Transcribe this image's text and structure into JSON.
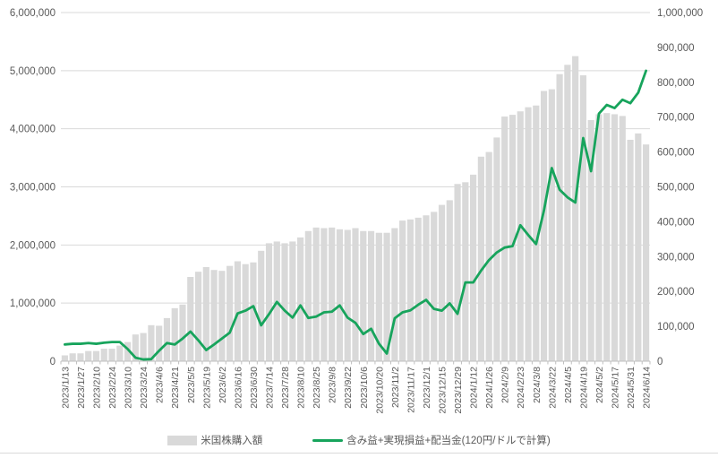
{
  "chart_data": {
    "type": "bar",
    "subtype": "combo-bar-line-dual-axis",
    "title": "",
    "xlabel": "",
    "ylabel_left": "",
    "ylabel_right": "",
    "grid": "horizontal",
    "legend_position": "bottom",
    "point_count": 75,
    "x_tick_labels": [
      "2023/1/13",
      "2023/1/27",
      "2023/2/10",
      "2023/2/24",
      "2023/3/10",
      "2023/3/24",
      "2023/4/6",
      "2023/4/21",
      "2023/5/5",
      "2023/5/19",
      "2023/6/2",
      "2023/6/16",
      "2023/6/30",
      "2023/7/14",
      "2023/7/28",
      "2023/8/10",
      "2023/8/25",
      "2023/9/8",
      "2023/9/22",
      "2023/10/6",
      "2023/10/20",
      "2023/11/2",
      "2023/11/17",
      "2023/12/1",
      "2023/12/15",
      "2023/12/29",
      "2024/1/12",
      "2024/1/26",
      "2024/2/9",
      "2024/2/23",
      "2024/3/8",
      "2024/3/22",
      "2024/4/5",
      "2024/4/19",
      "2024/5/2",
      "2024/5/17",
      "2024/5/31",
      "2024/6/14"
    ],
    "x_label_every_n_points": 2,
    "left_axis": {
      "min": 0,
      "max": 6000000,
      "step": 1000000,
      "labels": [
        "6,000,000",
        "5,000,000",
        "4,000,000",
        "3,000,000",
        "2,000,000",
        "1,000,000",
        "0"
      ]
    },
    "right_axis": {
      "min": 0,
      "max": 1000000,
      "step": 100000,
      "labels": [
        "1,000,000",
        "900,000",
        "800,000",
        "700,000",
        "600,000",
        "500,000",
        "400,000",
        "300,000",
        "200,000",
        "100,000",
        "0"
      ]
    },
    "series": [
      {
        "name": "米国株購入額",
        "type": "bar",
        "axis": "left",
        "color": "#d9d9d9",
        "values": [
          100000,
          135000,
          135000,
          175000,
          175000,
          215000,
          215000,
          268000,
          330000,
          460000,
          485000,
          620000,
          610000,
          742000,
          912000,
          975000,
          1450000,
          1540000,
          1620000,
          1570000,
          1555000,
          1640000,
          1720000,
          1670000,
          1700000,
          1900000,
          2030000,
          2060000,
          2030000,
          2060000,
          2130000,
          2240000,
          2300000,
          2290000,
          2300000,
          2270000,
          2260000,
          2290000,
          2240000,
          2240000,
          2210000,
          2210000,
          2290000,
          2420000,
          2440000,
          2470000,
          2510000,
          2570000,
          2690000,
          2770000,
          3050000,
          3080000,
          3210000,
          3520000,
          3600000,
          3850000,
          4210000,
          4240000,
          4300000,
          4370000,
          4400000,
          4650000,
          4680000,
          4940000,
          5100000,
          5250000,
          4920000,
          4150000,
          4250000,
          4270000,
          4250000,
          4220000,
          3810000,
          3920000,
          3730000
        ]
      },
      {
        "name": "含み益+実現損益+配当金(120円/ドルで計算)",
        "type": "line",
        "axis": "right",
        "color": "#17a45c",
        "values": [
          48000,
          50000,
          50000,
          52000,
          50000,
          53000,
          55000,
          55000,
          35000,
          10000,
          5000,
          6000,
          30000,
          52000,
          48000,
          65000,
          85000,
          60000,
          32000,
          48000,
          65000,
          82000,
          137000,
          145000,
          158000,
          103000,
          135000,
          170000,
          145000,
          125000,
          160000,
          124000,
          128000,
          140000,
          142000,
          160000,
          125000,
          110000,
          78000,
          93000,
          50000,
          22000,
          123000,
          140000,
          146000,
          162000,
          176000,
          150000,
          145000,
          166000,
          136000,
          226000,
          226000,
          260000,
          290000,
          312000,
          326000,
          330000,
          390000,
          362000,
          336000,
          432000,
          554000,
          492000,
          470000,
          455000,
          640000,
          545000,
          710000,
          735000,
          726000,
          750000,
          740000,
          770000,
          833000
        ]
      }
    ],
    "colors": {
      "grid": "#d9d9d9",
      "axis_line": "#bfbfbf",
      "tick_text": "#595959",
      "bar_fill": "#d9d9d9",
      "line_stroke": "#17a45c"
    }
  }
}
